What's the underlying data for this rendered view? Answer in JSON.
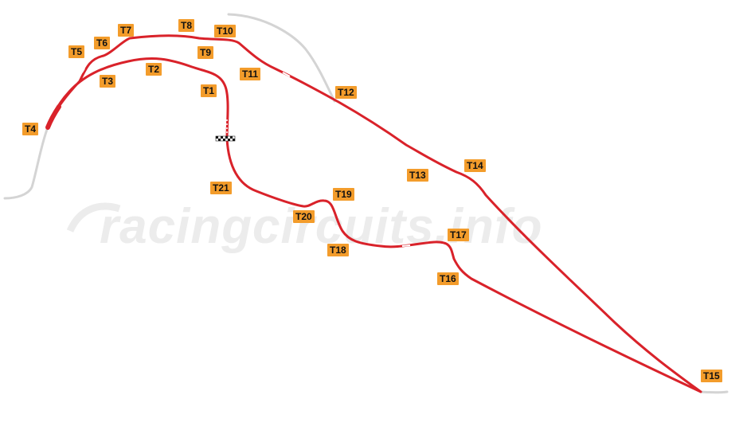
{
  "watermark": {
    "text": "racingcircuits.info"
  },
  "colors": {
    "track": "#d9222a",
    "track_unused": "#d4d4d4",
    "label_bg": "#f39c2b",
    "label_text": "#111111",
    "watermark": "#ececec"
  },
  "turns": [
    "T1",
    "T2",
    "T3",
    "T4",
    "T5",
    "T6",
    "T7",
    "T8",
    "T9",
    "T10",
    "T11",
    "T12",
    "T13",
    "T14",
    "T15",
    "T16",
    "T17",
    "T18",
    "T19",
    "T20",
    "T21"
  ],
  "icons": {
    "start_finish": "checkered-flag-icon"
  }
}
